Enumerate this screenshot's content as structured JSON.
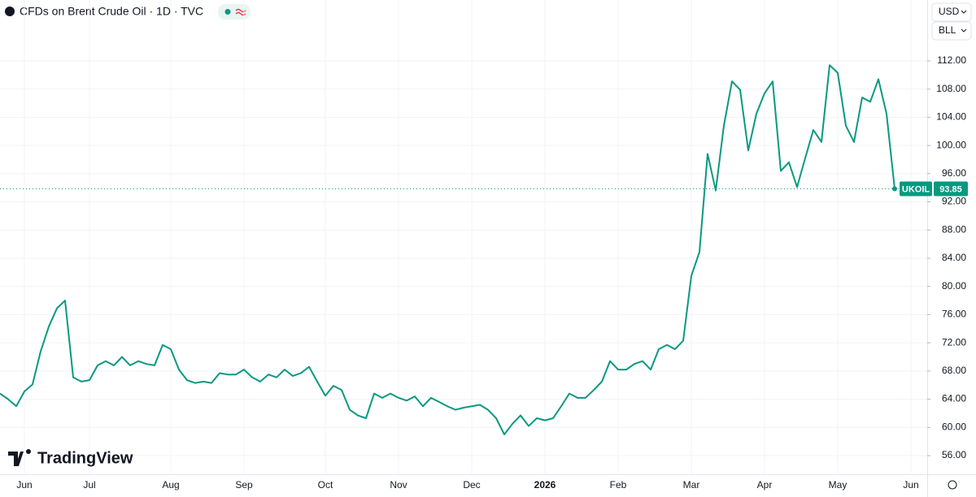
{
  "chart_data": {
    "type": "line",
    "title": "CFDs on Brent Crude Oil · 1D · TVC",
    "categories": [
      null,
      null,
      null,
      "Jun",
      null,
      null,
      null,
      null,
      null,
      null,
      null,
      "Jul",
      null,
      null,
      null,
      null,
      null,
      null,
      null,
      null,
      null,
      "Aug",
      null,
      null,
      null,
      null,
      null,
      null,
      null,
      null,
      "Sep",
      null,
      null,
      null,
      null,
      null,
      null,
      null,
      null,
      null,
      "Oct",
      null,
      null,
      null,
      null,
      null,
      null,
      null,
      null,
      "Nov",
      null,
      null,
      null,
      null,
      null,
      null,
      null,
      null,
      "Dec",
      null,
      null,
      null,
      null,
      null,
      null,
      null,
      null,
      "2026",
      null,
      null,
      null,
      null,
      null,
      null,
      null,
      null,
      "Feb",
      null,
      null,
      null,
      null,
      null,
      null,
      null,
      null,
      "Mar",
      null,
      null,
      null,
      null,
      null,
      null,
      null,
      null,
      "Apr",
      null,
      null,
      null,
      null,
      null,
      null,
      null,
      null,
      "May",
      null,
      null,
      null,
      null,
      null,
      null,
      null,
      null,
      "Jun"
    ],
    "series": [
      {
        "name": "UKOIL",
        "color": "#089981",
        "values": [
          64.8,
          64.0,
          63.0,
          65.1,
          66.1,
          70.8,
          74.3,
          76.9,
          78.0,
          67.1,
          66.5,
          66.7,
          68.8,
          69.4,
          68.8,
          70.0,
          68.8,
          69.4,
          69.0,
          68.8,
          71.7,
          71.1,
          68.2,
          66.7,
          66.3,
          66.5,
          66.3,
          67.7,
          67.5,
          67.5,
          68.2,
          67.1,
          66.5,
          67.5,
          67.1,
          68.2,
          67.3,
          67.7,
          68.6,
          66.5,
          64.5,
          65.9,
          65.3,
          62.5,
          61.7,
          61.3,
          64.8,
          64.2,
          64.8,
          64.2,
          63.8,
          64.4,
          63.0,
          64.2,
          63.6,
          63.0,
          62.5,
          62.8,
          63.0,
          63.2,
          62.5,
          61.3,
          59.0,
          60.5,
          61.7,
          60.2,
          61.3,
          61.0,
          61.3,
          63.0,
          64.8,
          64.2,
          64.2,
          65.3,
          66.5,
          69.4,
          68.2,
          68.2,
          69.0,
          69.4,
          68.2,
          71.1,
          71.7,
          71.1,
          72.3,
          81.5,
          84.9,
          98.8,
          93.6,
          102.8,
          109.1,
          107.9,
          99.3,
          104.5,
          107.4,
          109.1,
          96.4,
          97.6,
          94.1,
          98.2,
          102.2,
          100.5,
          111.4,
          110.3,
          102.8,
          100.5,
          106.8,
          106.2,
          109.4,
          104.5,
          93.85,
          null,
          null
        ]
      }
    ],
    "ylim": [
      53.35,
      120.64
    ],
    "yticks": [
      {
        "value": 56,
        "label": "56.00"
      },
      {
        "value": 60,
        "label": "60.00"
      },
      {
        "value": 64,
        "label": "64.00"
      },
      {
        "value": 68,
        "label": "68.00"
      },
      {
        "value": 72,
        "label": "72.00"
      },
      {
        "value": 76,
        "label": "76.00"
      },
      {
        "value": 80,
        "label": "80.00"
      },
      {
        "value": 84,
        "label": "84.00"
      },
      {
        "value": 88,
        "label": "88.00"
      },
      {
        "value": 92,
        "label": "92.00"
      },
      {
        "value": 96,
        "label": "96.00"
      },
      {
        "value": 100,
        "label": "100.00"
      },
      {
        "value": 104,
        "label": "104.00"
      },
      {
        "value": 108,
        "label": "108.00"
      },
      {
        "value": 112,
        "label": "112.00"
      }
    ],
    "grid": true
  },
  "toolbar": {
    "currency": "USD",
    "unit": "BLL"
  },
  "brand": "TradingView"
}
